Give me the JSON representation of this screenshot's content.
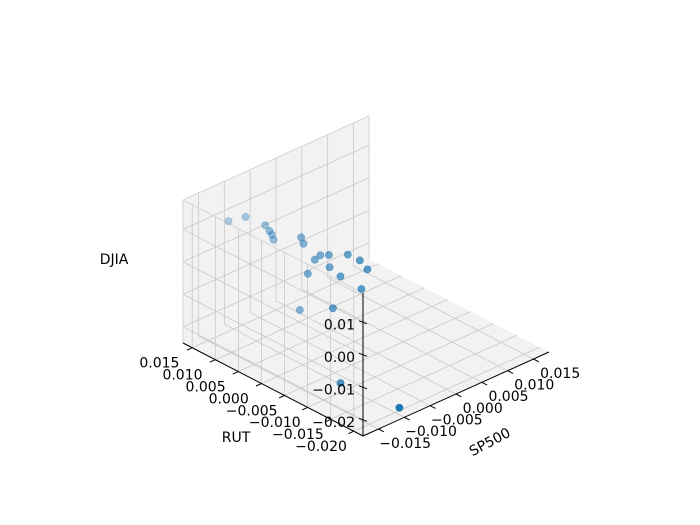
{
  "chart_data": {
    "type": "scatter",
    "projection": "3d",
    "xlabel": "SP500",
    "ylabel": "RUT",
    "zlabel": "DJIA",
    "x_ticks": [
      "−0.015",
      "−0.010",
      "−0.005",
      "0.000",
      "0.005",
      "0.010",
      "0.015"
    ],
    "y_ticks": [
      "−0.020",
      "−0.015",
      "−0.010",
      "−0.005",
      "0.000",
      "0.005",
      "0.010",
      "0.015"
    ],
    "z_ticks": [
      "−0.02",
      "−0.01",
      "0.00",
      "0.01"
    ],
    "x_tick_values": [
      -0.015,
      -0.01,
      -0.005,
      0.0,
      0.005,
      0.01,
      0.015
    ],
    "y_tick_values": [
      -0.02,
      -0.015,
      -0.01,
      -0.005,
      0.0,
      0.005,
      0.01,
      0.015
    ],
    "z_tick_values": [
      -0.02,
      -0.01,
      0.0,
      0.01
    ],
    "xlim": [
      -0.018,
      0.018
    ],
    "ylim": [
      -0.022,
      0.017
    ],
    "zlim": [
      -0.025,
      0.019
    ],
    "grid": true,
    "point_color": "#1f77b4",
    "points": [
      {
        "x": -0.0141,
        "y": 0.0115,
        "z": 0.0137
      },
      {
        "x": -0.0124,
        "y": 0.0097,
        "z": 0.0151
      },
      {
        "x": -0.0078,
        "y": 0.0106,
        "z": 0.0086
      },
      {
        "x": -0.0087,
        "y": 0.0087,
        "z": 0.0089
      },
      {
        "x": -0.0066,
        "y": 0.0105,
        "z": 0.0049
      },
      {
        "x": -0.0053,
        "y": 0.0116,
        "z": 0.0016
      },
      {
        "x": -0.0038,
        "y": 0.0073,
        "z": 0.0044
      },
      {
        "x": -0.0017,
        "y": 0.0067,
        "z": -0.0035
      },
      {
        "x": -0.0011,
        "y": 0.0098,
        "z": -0.0013
      },
      {
        "x": -0.0066,
        "y": 0.0027,
        "z": -0.0014
      },
      {
        "x": 0.0002,
        "y": 0.0076,
        "z": -0.0042
      },
      {
        "x": 0.0014,
        "y": 0.0071,
        "z": -0.0046
      },
      {
        "x": -0.0018,
        "y": 0.001,
        "z": -0.0044
      },
      {
        "x": 0.001,
        "y": 0.0065,
        "z": -0.0076
      },
      {
        "x": 0.0063,
        "y": 0.0085,
        "z": -0.009
      },
      {
        "x": 0.0063,
        "y": 0.0059,
        "z": -0.0089
      },
      {
        "x": -0.0065,
        "y": -0.0026,
        "z": -0.0082
      },
      {
        "x": 0.0042,
        "y": 0.0032,
        "z": -0.0142
      },
      {
        "x": 0.0101,
        "y": 0.0085,
        "z": -0.0163
      },
      {
        "x": -0.0046,
        "y": 0.0067,
        "z": -0.0169
      },
      {
        "x": -0.0152,
        "y": -0.014,
        "z": -0.0166
      },
      {
        "x": -0.0114,
        "y": -0.0225,
        "z": -0.0207
      }
    ]
  }
}
